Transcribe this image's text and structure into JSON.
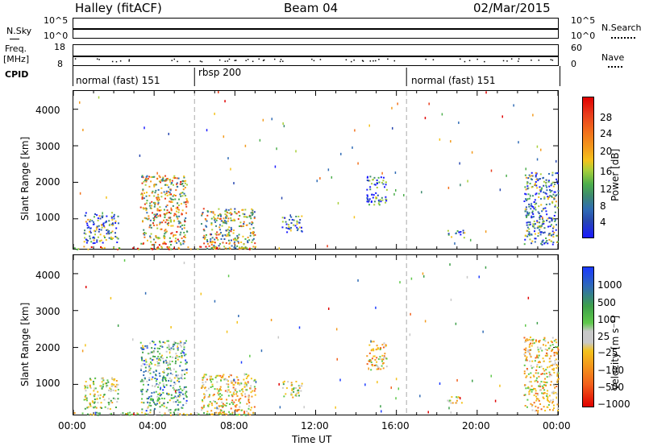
{
  "header": {
    "station": "Halley (fitACF)",
    "beam": "Beam 04",
    "date": "02/Mar/2015"
  },
  "top_panels": {
    "nsky_label": "N.Sky",
    "nsky_ticks": [
      "10^5",
      "10^0"
    ],
    "nsearch_label": "N.Search",
    "nsearch_ticks": [
      "10^5",
      "10^0"
    ],
    "freq_label": "Freq.",
    "freq_unit": "[MHz]",
    "freq_ticks": [
      "18",
      "8"
    ],
    "nave_label": "Nave",
    "nave_ticks": [
      "60",
      "0"
    ],
    "cpid_label": "CPID"
  },
  "cpid_segments": [
    {
      "label": "normal (fast) 151",
      "start": 0,
      "end": 6
    },
    {
      "label": "rbsp 200",
      "start": 6,
      "end": 16.5
    },
    {
      "label": "normal (fast) 151",
      "start": 16.5,
      "end": 24
    }
  ],
  "axes": {
    "ylabel": "Slant Range [km]",
    "xlabel": "Time UT",
    "x_ticks": [
      "00:00",
      "04:00",
      "08:00",
      "12:00",
      "16:00",
      "20:00",
      "00:00"
    ],
    "y_ticks": [
      "1000",
      "2000",
      "3000",
      "4000"
    ]
  },
  "colorbars": {
    "power": {
      "label": "Power [dB]",
      "ticks": [
        "4",
        "8",
        "12",
        "16",
        "20",
        "24",
        "28"
      ]
    },
    "velocity": {
      "label": "Velocity [m s⁻¹]",
      "ticks": [
        "1000",
        "500",
        "100",
        "25",
        "−25",
        "−100",
        "−500",
        "−1000"
      ]
    }
  },
  "chart_data": [
    {
      "type": "heatmap",
      "title": "Power",
      "xlabel": "Time UT",
      "ylabel": "Slant Range [km]",
      "xlim": [
        0,
        24
      ],
      "ylim": [
        180,
        4500
      ],
      "colorbar": {
        "label": "Power [dB]",
        "range": [
          0,
          32
        ],
        "colors": [
          "#1a1aff",
          "#2848b0",
          "#2f6bb5",
          "#3e8b6e",
          "#4cae4c",
          "#a8cf3a",
          "#f4c21b",
          "#f39a1b",
          "#f2711b",
          "#e83c1c",
          "#e00000"
        ]
      },
      "clusters": [
        {
          "t0": 0.5,
          "t1": 2.2,
          "r0": 350,
          "r1": 1200,
          "power": 10
        },
        {
          "t0": 3.3,
          "t1": 5.6,
          "r0": 300,
          "r1": 2200,
          "power": 18
        },
        {
          "t0": 6.3,
          "t1": 9.0,
          "r0": 200,
          "r1": 1300,
          "power": 16
        },
        {
          "t0": 10.3,
          "t1": 11.3,
          "r0": 650,
          "r1": 1100,
          "power": 8
        },
        {
          "t0": 14.5,
          "t1": 15.5,
          "r0": 1400,
          "r1": 2200,
          "power": 6
        },
        {
          "t0": 18.5,
          "t1": 19.4,
          "r0": 500,
          "r1": 700,
          "power": 8
        },
        {
          "t0": 22.3,
          "t1": 24,
          "r0": 300,
          "r1": 2300,
          "power": 10
        },
        {
          "t0": 0.0,
          "t1": 9.0,
          "r0": 180,
          "r1": 260,
          "power": 24
        }
      ]
    },
    {
      "type": "heatmap",
      "title": "Velocity",
      "xlabel": "Time UT",
      "ylabel": "Slant Range [km]",
      "xlim": [
        0,
        24
      ],
      "ylim": [
        180,
        4500
      ],
      "colorbar": {
        "label": "Velocity [m s⁻¹]",
        "range": [
          -1200,
          1200
        ],
        "colors": [
          "#e00000",
          "#f2601b",
          "#f39a1b",
          "#f4c21b",
          "#c8c8c8",
          "#5ec84a",
          "#3ea04a",
          "#2f6bb5",
          "#1a3aff"
        ]
      },
      "clusters": [
        {
          "t0": 0.5,
          "t1": 2.2,
          "r0": 350,
          "r1": 1200,
          "velocity": 50
        },
        {
          "t0": 3.3,
          "t1": 5.6,
          "r0": 300,
          "r1": 2200,
          "velocity": 400
        },
        {
          "t0": 6.3,
          "t1": 9.0,
          "r0": 200,
          "r1": 1300,
          "velocity": -200
        },
        {
          "t0": 10.3,
          "t1": 11.3,
          "r0": 650,
          "r1": 1100,
          "velocity": 50
        },
        {
          "t0": 14.5,
          "t1": 15.5,
          "r0": 1400,
          "r1": 2200,
          "velocity": -300
        },
        {
          "t0": 18.5,
          "t1": 19.4,
          "r0": 500,
          "r1": 700,
          "velocity": -200
        },
        {
          "t0": 22.3,
          "t1": 24,
          "r0": 300,
          "r1": 2300,
          "velocity": -200
        },
        {
          "t0": 0.0,
          "t1": 9.0,
          "r0": 180,
          "r1": 260,
          "velocity": 80
        }
      ]
    }
  ]
}
